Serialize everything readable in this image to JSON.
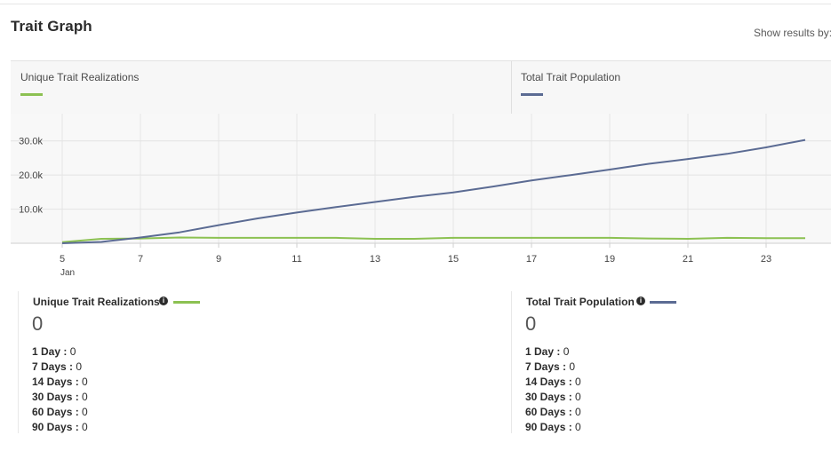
{
  "header": {
    "title": "Trait Graph",
    "show_results_by": "Show results by:"
  },
  "colors": {
    "unique": "#8cc152",
    "total": "#5b6b93"
  },
  "legend": {
    "unique_label": "Unique Trait Realizations",
    "total_label": "Total Trait Population"
  },
  "chart_data": {
    "type": "line",
    "x": [
      5,
      6,
      7,
      8,
      9,
      10,
      11,
      12,
      13,
      14,
      15,
      16,
      17,
      18,
      19,
      20,
      21,
      22,
      23,
      24
    ],
    "x_tick_labels": [
      "5",
      "7",
      "9",
      "11",
      "13",
      "15",
      "17",
      "19",
      "21",
      "23"
    ],
    "x_sub_label": "Jan",
    "y_tick_labels": [
      "10.0k",
      "20.0k",
      "30.0k"
    ],
    "ylim": [
      0,
      38000
    ],
    "grid": true,
    "series": [
      {
        "name": "Unique Trait Realizations",
        "color": "#8cc152",
        "values": [
          300,
          1300,
          1400,
          1700,
          1600,
          1600,
          1600,
          1600,
          1300,
          1300,
          1600,
          1600,
          1600,
          1600,
          1600,
          1400,
          1300,
          1600,
          1500,
          1500
        ]
      },
      {
        "name": "Total Trait Population",
        "color": "#5b6b93",
        "values": [
          0,
          400,
          1700,
          3200,
          5300,
          7300,
          9000,
          10600,
          12100,
          13600,
          14900,
          16600,
          18400,
          20000,
          21600,
          23300,
          24700,
          26200,
          28100,
          30300
        ]
      }
    ]
  },
  "stats": {
    "unique": {
      "title": "Unique Trait Realizations",
      "value": "0",
      "rows": [
        {
          "label": "1 Day :",
          "value": "0"
        },
        {
          "label": "7 Days :",
          "value": "0"
        },
        {
          "label": "14 Days :",
          "value": "0"
        },
        {
          "label": "30 Days :",
          "value": "0"
        },
        {
          "label": "60 Days :",
          "value": "0"
        },
        {
          "label": "90 Days :",
          "value": "0"
        }
      ]
    },
    "total": {
      "title": "Total Trait Population",
      "value": "0",
      "rows": [
        {
          "label": "1 Day :",
          "value": "0"
        },
        {
          "label": "7 Days :",
          "value": "0"
        },
        {
          "label": "14 Days :",
          "value": "0"
        },
        {
          "label": "30 Days :",
          "value": "0"
        },
        {
          "label": "60 Days :",
          "value": "0"
        },
        {
          "label": "90 Days :",
          "value": "0"
        }
      ]
    }
  }
}
